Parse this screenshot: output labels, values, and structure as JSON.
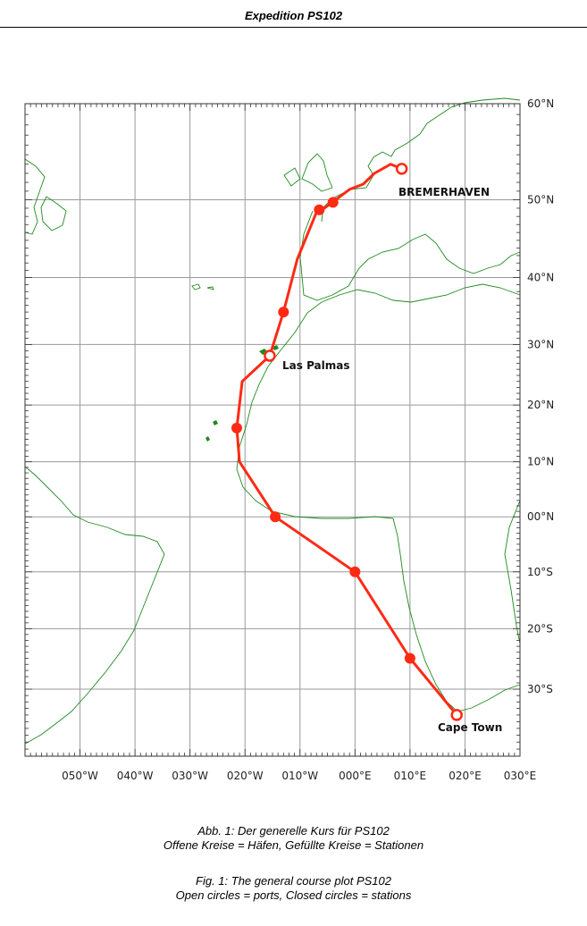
{
  "header": {
    "title": "Expedition PS102"
  },
  "map": {
    "projection": "mercator",
    "extent": {
      "lon": [
        -60,
        30
      ],
      "lat": [
        -40,
        60
      ]
    },
    "lat_ticks": [
      {
        "lat": 60,
        "label": "60°N"
      },
      {
        "lat": 50,
        "label": "50°N"
      },
      {
        "lat": 40,
        "label": "40°N"
      },
      {
        "lat": 30,
        "label": "30°N"
      },
      {
        "lat": 20,
        "label": "20°N"
      },
      {
        "lat": 10,
        "label": "10°N"
      },
      {
        "lat": 0,
        "label": "00°N"
      },
      {
        "lat": -10,
        "label": "10°S"
      },
      {
        "lat": -20,
        "label": "20°S"
      },
      {
        "lat": -30,
        "label": "30°S"
      }
    ],
    "lon_ticks": [
      {
        "lon": -50,
        "label": "050°W"
      },
      {
        "lon": -40,
        "label": "040°W"
      },
      {
        "lon": -30,
        "label": "030°W"
      },
      {
        "lon": -20,
        "label": "020°W"
      },
      {
        "lon": -10,
        "label": "010°W"
      },
      {
        "lon": 0,
        "label": "000°E"
      },
      {
        "lon": 10,
        "label": "010°E"
      },
      {
        "lon": 20,
        "label": "020°E"
      },
      {
        "lon": 30,
        "label": "030°E"
      }
    ],
    "grid": true,
    "colors": {
      "track": "#ff2a14",
      "coast": "#1f8a1f",
      "grid": "#9a9a9a"
    },
    "track": [
      [
        8.5,
        53.5
      ],
      [
        6.5,
        54
      ],
      [
        3.5,
        53
      ],
      [
        1.5,
        51.8
      ],
      [
        -1,
        51.2
      ],
      [
        -3.5,
        50
      ],
      [
        -6,
        48.8
      ],
      [
        -7,
        48.5
      ],
      [
        -10.5,
        42.5
      ],
      [
        -13,
        35
      ],
      [
        -15.5,
        28.2
      ],
      [
        -20.5,
        24
      ],
      [
        -21.5,
        16
      ],
      [
        -21,
        10
      ],
      [
        -14.5,
        0
      ],
      [
        0,
        -10
      ],
      [
        10,
        -25
      ],
      [
        18.5,
        -34
      ]
    ],
    "ports": [
      {
        "name": "BREMERHAVEN",
        "lon": 8.5,
        "lat": 53.5
      },
      {
        "name": "Las Palmas",
        "lon": -15.5,
        "lat": 28.2
      },
      {
        "name": "Cape Town",
        "lon": 18.5,
        "lat": -34
      }
    ],
    "stations": [
      {
        "lon": -4,
        "lat": 49.7
      },
      {
        "lon": -6.5,
        "lat": 48.8
      },
      {
        "lon": -13,
        "lat": 35
      },
      {
        "lon": -21.5,
        "lat": 16
      },
      {
        "lon": -14.5,
        "lat": 0
      },
      {
        "lon": 0,
        "lat": -10
      },
      {
        "lon": 10,
        "lat": -25
      }
    ]
  },
  "caption_de": {
    "line1": "Abb. 1: Der generelle Kurs für PS102",
    "line2": "Offene Kreise = Häfen, Gefüllte Kreise = Stationen"
  },
  "caption_en": {
    "line1": "Fig. 1: The general course plot PS102",
    "line2": "Open circles = ports, Closed circles = stations"
  }
}
